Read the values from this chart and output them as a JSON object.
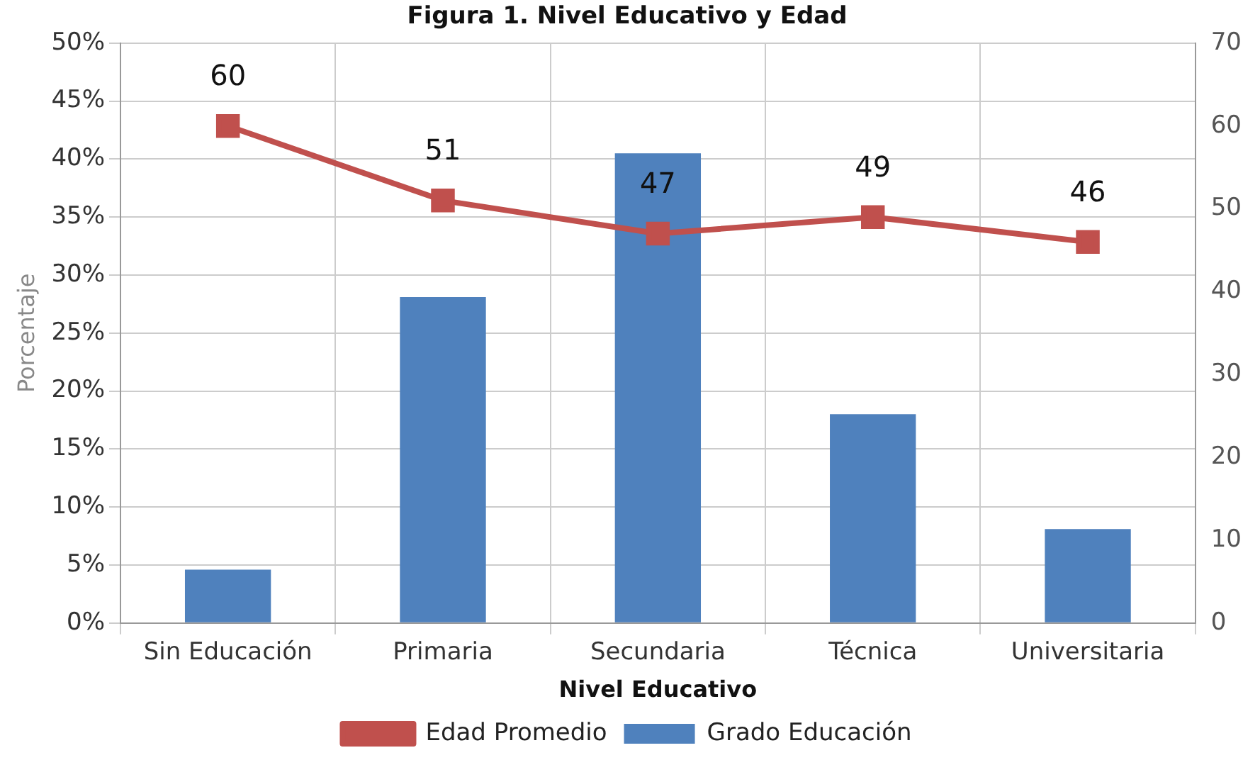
{
  "chart_data": {
    "type": "bar",
    "title": "Figura 1. Nivel Educativo y Edad",
    "xlabel": "Nivel Educativo",
    "ylabel": "Porcentaje",
    "categories": [
      "Sin Educación",
      "Primaria",
      "Secundaria",
      "Técnica",
      "Universitaria"
    ],
    "series": [
      {
        "name": "Grado Educación",
        "color": "#4f81bd",
        "values": [
          4.6,
          28.1,
          40.5,
          18.0,
          8.1
        ]
      },
      {
        "name": "Edad Promedio",
        "type": "line",
        "axis": "y2",
        "color": "#c0504d",
        "marker": "square",
        "values": [
          60,
          51,
          47,
          49,
          46
        ],
        "value_labels": [
          "60",
          "51",
          "47",
          "49",
          "46"
        ]
      }
    ],
    "ylim": [
      0,
      50
    ],
    "yticks": [
      {
        "value": 0,
        "label": "0%"
      },
      {
        "value": 5,
        "label": "5%"
      },
      {
        "value": 10,
        "label": "10%"
      },
      {
        "value": 15,
        "label": "15%"
      },
      {
        "value": 20,
        "label": "20%"
      },
      {
        "value": 25,
        "label": "25%"
      },
      {
        "value": 30,
        "label": "30%"
      },
      {
        "value": 35,
        "label": "35%"
      },
      {
        "value": 40,
        "label": "40%"
      },
      {
        "value": 45,
        "label": "45%"
      },
      {
        "value": 50,
        "label": "50%"
      }
    ],
    "y2lim": [
      0,
      70
    ],
    "y2ticks": [
      0,
      10,
      20,
      30,
      40,
      50,
      60,
      70
    ],
    "grid": true,
    "legend": "bottom"
  }
}
